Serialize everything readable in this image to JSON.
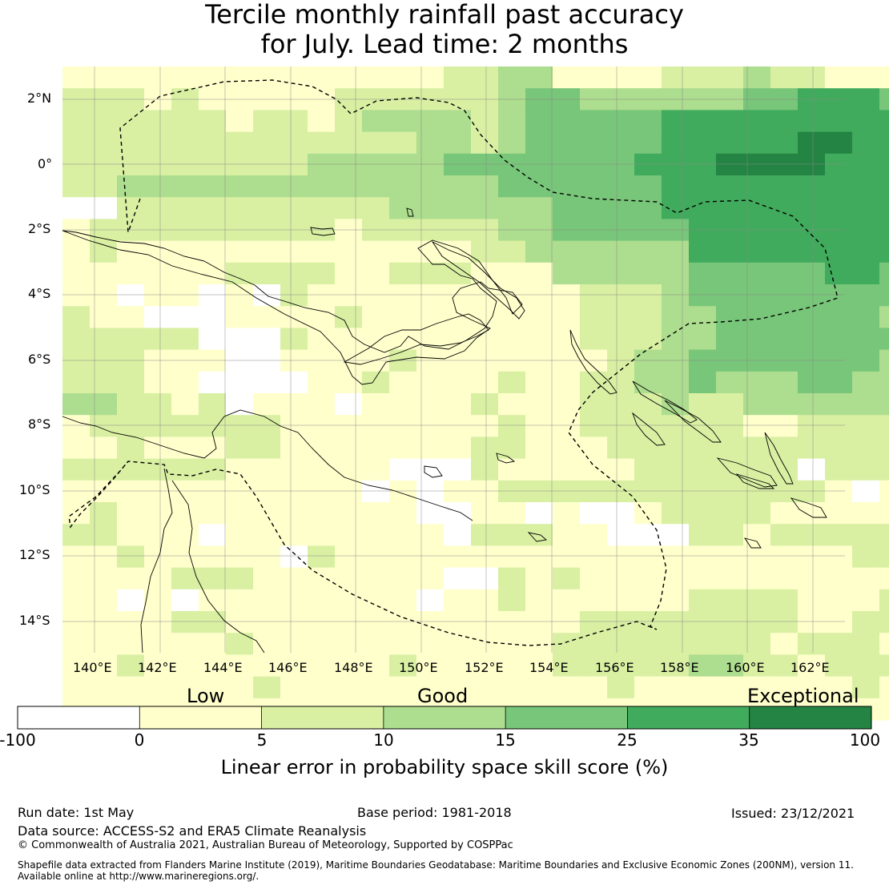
{
  "title": {
    "line1": "Tercile monthly rainfall past accuracy",
    "line2": "for July. Lead time: 2 months"
  },
  "map": {
    "lat_labels": [
      "2°N",
      "0°",
      "2°S",
      "4°S",
      "6°S",
      "8°S",
      "10°S",
      "12°S",
      "14°S"
    ],
    "lon_labels": [
      "140°E",
      "142°E",
      "144°E",
      "146°E",
      "148°E",
      "150°E",
      "152°E",
      "154°E",
      "156°E",
      "158°E",
      "160°E",
      "162°E"
    ]
  },
  "colorbar": {
    "category_low": "Low",
    "category_good": "Good",
    "category_exceptional": "Exceptional",
    "ticks": [
      "-100",
      "0",
      "5",
      "10",
      "15",
      "25",
      "35",
      "100"
    ],
    "colors": [
      "#ffffff",
      "#ffffcc",
      "#d9f0a3",
      "#addd8e",
      "#78c679",
      "#41ab5d",
      "#238443"
    ],
    "label": "Linear error in probability space skill score (%)"
  },
  "footer": {
    "run_date": "Run date: 1st May",
    "base_period": "Base period: 1981-2018",
    "issued": "Issued: 23/12/2021",
    "data_source": "Data source: ACCESS-S2 and ERA5 Climate Reanalysis",
    "copyright": "© Commonwealth of Australia 2021, Australian Bureau of Meteorology, Supported by COSPPac",
    "shapefile_line1": "Shapefile data extracted from Flanders Marine Institute (2019), Maritime Boundaries Geodatabase: Maritime Boundaries and Exclusive Economic Zones (200NM), version 11.",
    "shapefile_line2": "Available online at http://www.marineregions.org/."
  }
}
